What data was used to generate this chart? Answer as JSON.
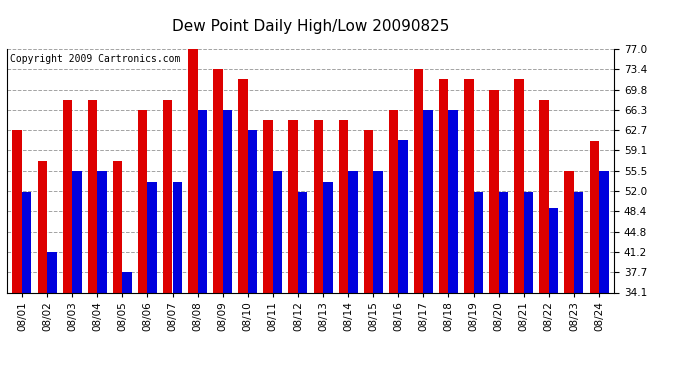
{
  "title": "Dew Point Daily High/Low 20090825",
  "copyright": "Copyright 2009 Cartronics.com",
  "dates": [
    "08/01",
    "08/02",
    "08/03",
    "08/04",
    "08/05",
    "08/06",
    "08/07",
    "08/08",
    "08/09",
    "08/10",
    "08/11",
    "08/12",
    "08/13",
    "08/14",
    "08/15",
    "08/16",
    "08/17",
    "08/18",
    "08/19",
    "08/20",
    "08/21",
    "08/22",
    "08/23",
    "08/24"
  ],
  "highs": [
    62.7,
    57.2,
    68.0,
    68.0,
    57.2,
    66.3,
    68.0,
    77.0,
    73.4,
    71.6,
    64.4,
    64.4,
    64.4,
    64.4,
    62.7,
    66.3,
    73.4,
    71.6,
    71.6,
    69.8,
    71.6,
    68.0,
    55.5,
    60.8
  ],
  "lows": [
    51.8,
    41.2,
    55.5,
    55.5,
    37.7,
    53.6,
    53.6,
    66.3,
    66.3,
    62.7,
    55.5,
    51.8,
    53.6,
    55.5,
    55.5,
    61.0,
    66.3,
    66.3,
    51.8,
    51.8,
    51.8,
    49.0,
    51.8,
    55.5
  ],
  "high_color": "#dd0000",
  "low_color": "#0000dd",
  "bg_color": "#ffffff",
  "grid_color": "#999999",
  "yticks": [
    34.1,
    37.7,
    41.2,
    44.8,
    48.4,
    52.0,
    55.5,
    59.1,
    62.7,
    66.3,
    69.8,
    73.4,
    77.0
  ],
  "ylim": [
    34.1,
    77.0
  ],
  "title_fontsize": 11,
  "tick_fontsize": 7.5,
  "copyright_fontsize": 7
}
